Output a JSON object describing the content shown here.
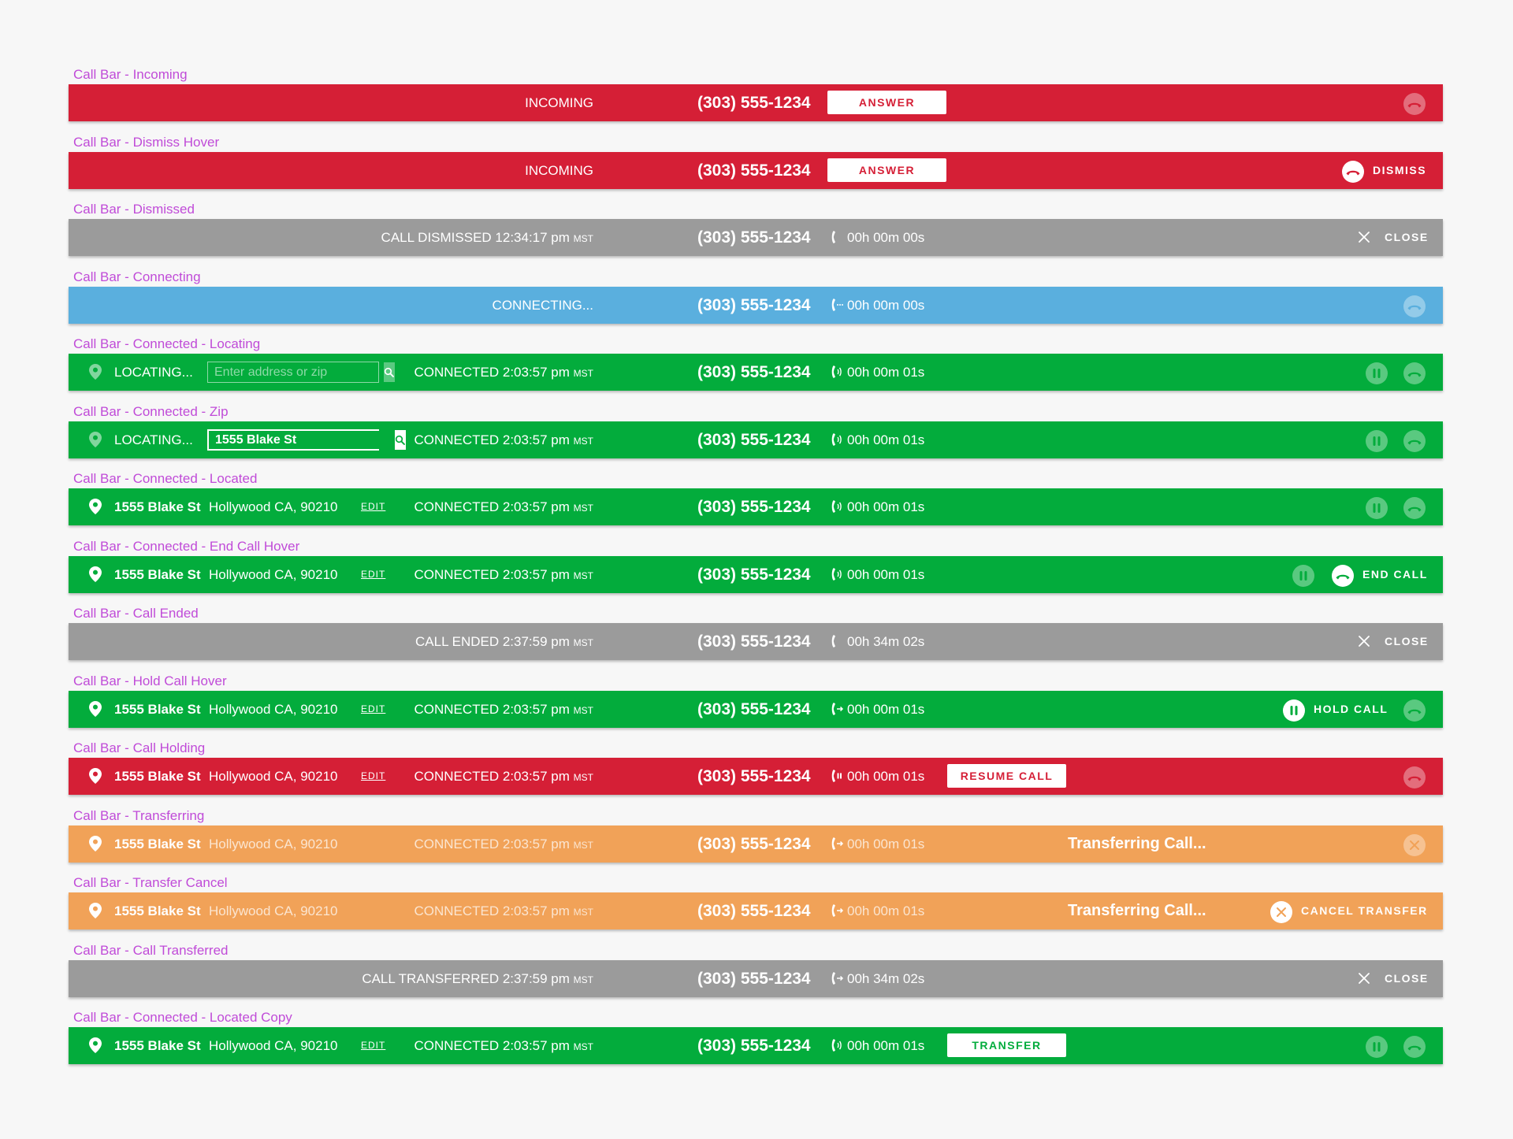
{
  "phone": "(303) 555-1234",
  "common": {
    "incoming": "INCOMING",
    "connecting": "CONNECTING...",
    "connected": "CONNECTED 2:03:57 pm",
    "tz": "MST",
    "timer_0": "00h 00m 00s",
    "timer_1": "00h 00m 01s",
    "timer_34": "00h 34m 02s",
    "locating": "LOCATING...",
    "placeholder": "Enter address or zip",
    "zip_value": "1555 Blake St",
    "street": "1555 Blake St",
    "city": "Hollywood CA, 90210",
    "edit": "EDIT",
    "answer": "ANSWER",
    "dismiss": "DISMISS",
    "close": "CLOSE",
    "end_call": "END CALL",
    "hold_call": "HOLD CALL",
    "resume_call": "RESUME CALL",
    "transferring": "Transferring Call...",
    "cancel_transfer": "CANCEL TRANSFER",
    "transfer": "TRANSFER",
    "dismissed": "CALL DISMISSED 12:34:17 pm",
    "ended": "CALL ENDED 2:37:59 pm",
    "transferred": "CALL TRANSFERRED 2:37:59 pm"
  },
  "labels": [
    "Call Bar - Incoming",
    "Call Bar - Dismiss Hover",
    "Call Bar - Dismissed",
    "Call Bar - Connecting",
    "Call Bar - Connected - Locating",
    "Call Bar - Connected - Zip",
    "Call Bar - Connected - Located",
    "Call Bar - Connected - End Call Hover",
    "Call Bar - Call Ended",
    "Call Bar - Hold Call Hover",
    "Call Bar - Call Holding",
    "Call Bar - Transferring",
    "Call Bar - Transfer Cancel",
    "Call Bar - Call Transferred",
    "Call Bar - Connected - Located Copy"
  ],
  "colors": {
    "red": "#d51f36",
    "green": "#03ac3c",
    "gray": "#9b9b9b",
    "blue": "#5aafde",
    "orange": "#f1a258",
    "label": "#c04bd8"
  }
}
